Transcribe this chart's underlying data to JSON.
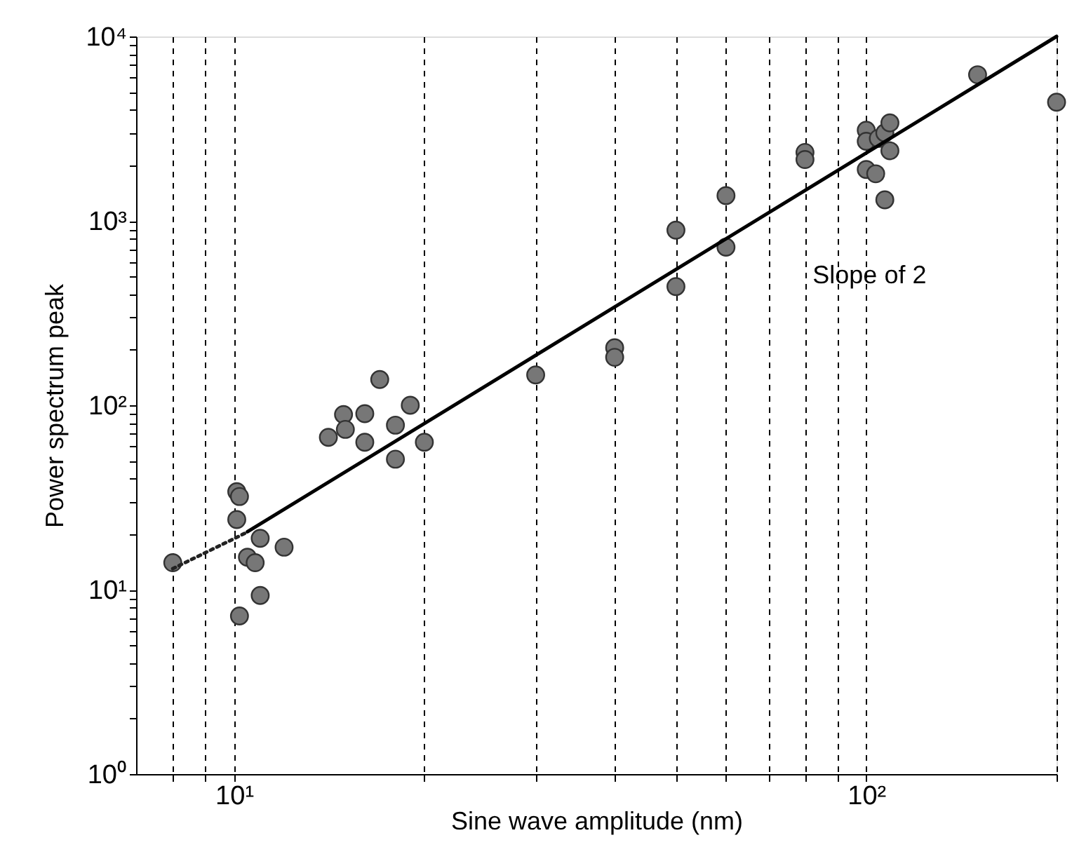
{
  "chart_data": {
    "type": "scatter",
    "xlabel": "Sine wave amplitude (nm)",
    "ylabel": "Power spectrum peak",
    "log": "xy",
    "grid": "x",
    "marker": "circle",
    "xlim": [
      7,
      200
    ],
    "ylim": [
      1,
      10000
    ],
    "xticks": [
      {
        "value": 8,
        "label": null
      },
      {
        "value": 9,
        "label": null
      },
      {
        "value": 10,
        "label": "10¹"
      },
      {
        "value": 20,
        "label": null
      },
      {
        "value": 30,
        "label": null
      },
      {
        "value": 40,
        "label": null
      },
      {
        "value": 50,
        "label": null
      },
      {
        "value": 60,
        "label": null
      },
      {
        "value": 70,
        "label": null
      },
      {
        "value": 80,
        "label": null
      },
      {
        "value": 90,
        "label": null
      },
      {
        "value": 100,
        "label": "10²"
      },
      {
        "value": 200,
        "label": null
      }
    ],
    "yticks": [
      {
        "value": 1,
        "label": "10⁰"
      },
      {
        "value": 2,
        "label": null
      },
      {
        "value": 3,
        "label": null
      },
      {
        "value": 4,
        "label": null
      },
      {
        "value": 5,
        "label": null
      },
      {
        "value": 6,
        "label": null
      },
      {
        "value": 7,
        "label": null
      },
      {
        "value": 8,
        "label": null
      },
      {
        "value": 9,
        "label": null
      },
      {
        "value": 10,
        "label": "10¹"
      },
      {
        "value": 20,
        "label": null
      },
      {
        "value": 30,
        "label": null
      },
      {
        "value": 40,
        "label": null
      },
      {
        "value": 50,
        "label": null
      },
      {
        "value": 60,
        "label": null
      },
      {
        "value": 70,
        "label": null
      },
      {
        "value": 80,
        "label": null
      },
      {
        "value": 90,
        "label": null
      },
      {
        "value": 100,
        "label": "10²"
      },
      {
        "value": 200,
        "label": null
      },
      {
        "value": 300,
        "label": null
      },
      {
        "value": 400,
        "label": null
      },
      {
        "value": 500,
        "label": null
      },
      {
        "value": 600,
        "label": null
      },
      {
        "value": 700,
        "label": null
      },
      {
        "value": 800,
        "label": null
      },
      {
        "value": 900,
        "label": null
      },
      {
        "value": 1000,
        "label": "10³"
      },
      {
        "value": 2000,
        "label": null
      },
      {
        "value": 3000,
        "label": null
      },
      {
        "value": 4000,
        "label": null
      },
      {
        "value": 5000,
        "label": null
      },
      {
        "value": 6000,
        "label": null
      },
      {
        "value": 7000,
        "label": null
      },
      {
        "value": 8000,
        "label": null
      },
      {
        "value": 9000,
        "label": null
      },
      {
        "value": 10000,
        "label": "10⁴"
      }
    ],
    "series": [
      {
        "color": "#777777",
        "x": [
          8.0,
          10.1,
          10.2,
          10.1,
          11.0,
          10.5,
          10.8,
          12.0,
          11.0,
          10.2,
          14.1,
          14.9,
          15.0,
          16.1,
          16.1,
          17.0,
          18.0,
          18.0,
          19.0,
          20,
          30,
          40,
          40,
          50,
          50,
          60,
          60,
          80,
          80,
          100,
          100,
          100,
          103.5,
          104.5,
          107,
          109,
          109,
          107,
          150,
          200
        ],
        "values": [
          14,
          34,
          32,
          24,
          19,
          15,
          14,
          17,
          9.3,
          7.2,
          67,
          89,
          74,
          90,
          63,
          138,
          51,
          78,
          100,
          63,
          146,
          205,
          182,
          890,
          440,
          1370,
          720,
          2350,
          2150,
          3100,
          2700,
          1900,
          1800,
          2800,
          3000,
          3400,
          2400,
          1300,
          6200,
          4400
        ]
      },
      {
        "type": "line",
        "color": "#000000",
        "line_style": "solid",
        "marker": "none",
        "x": [
          10.5,
          200
        ],
        "values": [
          20.6,
          10000
        ]
      },
      {
        "type": "line",
        "color": "#222222",
        "line_style": "dotted",
        "marker": "none",
        "x": [
          8,
          10.4
        ],
        "values": [
          13,
          20.2
        ]
      }
    ],
    "annotations": [
      "Slope of 2"
    ]
  }
}
